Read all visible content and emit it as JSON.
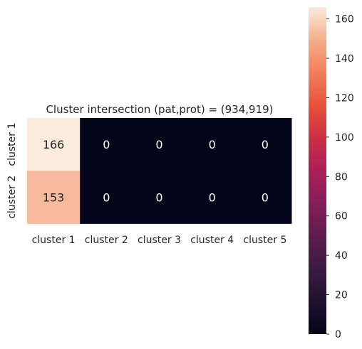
{
  "chart_data": {
    "type": "heatmap",
    "title": "Cluster intersection (pat,prot) = (934,919)",
    "x_categories": [
      "cluster 1",
      "cluster 2",
      "cluster 3",
      "cluster 4",
      "cluster 5"
    ],
    "y_categories": [
      "cluster 1",
      "cluster 2"
    ],
    "values": [
      [
        166,
        0,
        0,
        0,
        0
      ],
      [
        153,
        0,
        0,
        0,
        0
      ]
    ],
    "annotations": true,
    "colormap": "rocket",
    "colorbar": {
      "vmin": 0,
      "vmax": 166,
      "ticks": [
        0,
        20,
        40,
        60,
        80,
        100,
        120,
        140,
        160
      ],
      "tick_labels": [
        "0",
        "20",
        "40",
        "60",
        "80",
        "100",
        "120",
        "140",
        "160"
      ]
    },
    "xlabel": "",
    "ylabel": "",
    "grid": false,
    "colors": {
      "low": "#03051a",
      "high": "#faebdd",
      "annotation_light": "#ffffff",
      "annotation_dark": "#262626"
    }
  }
}
